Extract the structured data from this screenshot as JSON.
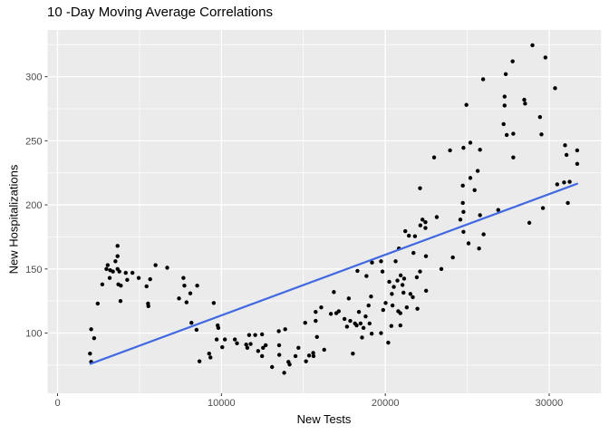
{
  "window": {
    "title": "10 -Day Moving Average Correlations"
  },
  "chart_data": {
    "type": "scatter",
    "title": "10 -Day Moving Average Correlations",
    "xlabel": "New Tests",
    "ylabel": "New Hospitalizations",
    "legend": "none",
    "grid": true,
    "x_ticks": [
      0,
      10000,
      20000,
      30000
    ],
    "x_minor_gridlines": [
      5000,
      15000,
      25000
    ],
    "y_ticks": [
      100,
      150,
      200,
      250,
      300
    ],
    "y_minor_gridlines": [
      75,
      125,
      175,
      225,
      275,
      325
    ],
    "xlim": [
      -610,
      33170
    ],
    "ylim": [
      53,
      336.5
    ],
    "colors": {
      "panel_bg": "#EBEBEB",
      "grid": "#FFFFFF",
      "points": "#000000",
      "trend": "#4169E1",
      "axis_text": "#4D4D4D",
      "tick_marks": "#333333"
    },
    "trend_line": {
      "x": [
        2010,
        31710
      ],
      "y": [
        76,
        216.5
      ]
    },
    "points": [
      [
        1980,
        84
      ],
      [
        2050,
        77.5
      ],
      [
        2050,
        103
      ],
      [
        2230,
        96
      ],
      [
        2450,
        123
      ],
      [
        2730,
        138
      ],
      [
        2980,
        150
      ],
      [
        3060,
        153
      ],
      [
        3180,
        143
      ],
      [
        3210,
        149
      ],
      [
        3380,
        148
      ],
      [
        3530,
        156
      ],
      [
        3660,
        150
      ],
      [
        3660,
        160
      ],
      [
        3660,
        168
      ],
      [
        3710,
        138
      ],
      [
        3770,
        148
      ],
      [
        3840,
        125
      ],
      [
        3860,
        137
      ],
      [
        4160,
        147
      ],
      [
        4250,
        141.5
      ],
      [
        4570,
        147
      ],
      [
        4950,
        143
      ],
      [
        5430,
        136.5
      ],
      [
        5520,
        123
      ],
      [
        5540,
        121
      ],
      [
        5650,
        142
      ],
      [
        5980,
        153
      ],
      [
        6690,
        151
      ],
      [
        7410,
        127
      ],
      [
        7680,
        143
      ],
      [
        7740,
        137
      ],
      [
        7870,
        124
      ],
      [
        8100,
        131
      ],
      [
        8170,
        108
      ],
      [
        8480,
        102.5
      ],
      [
        8520,
        137
      ],
      [
        8660,
        78
      ],
      [
        9250,
        84
      ],
      [
        9330,
        81
      ],
      [
        9530,
        123.5
      ],
      [
        9710,
        95
      ],
      [
        9770,
        106
      ],
      [
        9810,
        104
      ],
      [
        10050,
        89
      ],
      [
        10210,
        95
      ],
      [
        10820,
        95
      ],
      [
        10950,
        92
      ],
      [
        11510,
        91
      ],
      [
        11580,
        88.5
      ],
      [
        11690,
        98.5
      ],
      [
        11780,
        91.5
      ],
      [
        12060,
        98.5
      ],
      [
        12240,
        86
      ],
      [
        12480,
        82
      ],
      [
        12480,
        99
      ],
      [
        12540,
        88.5
      ],
      [
        12700,
        90.5
      ],
      [
        13090,
        73.5
      ],
      [
        13500,
        101.5
      ],
      [
        13520,
        90.5
      ],
      [
        13530,
        83
      ],
      [
        13830,
        69
      ],
      [
        13890,
        103
      ],
      [
        14090,
        77.5
      ],
      [
        14160,
        75.5
      ],
      [
        14520,
        82
      ],
      [
        14700,
        88.5
      ],
      [
        15110,
        108
      ],
      [
        15160,
        78
      ],
      [
        15350,
        82.5
      ],
      [
        15600,
        84.5
      ],
      [
        15620,
        82
      ],
      [
        15750,
        109.5
      ],
      [
        15750,
        116.5
      ],
      [
        15830,
        97
      ],
      [
        16090,
        120
      ],
      [
        16270,
        87
      ],
      [
        16680,
        115
      ],
      [
        16860,
        132
      ],
      [
        17010,
        115.5
      ],
      [
        17160,
        117
      ],
      [
        17510,
        111
      ],
      [
        17660,
        105
      ],
      [
        17770,
        127
      ],
      [
        17860,
        109.5
      ],
      [
        18020,
        84
      ],
      [
        18150,
        107.5
      ],
      [
        18250,
        106
      ],
      [
        18300,
        148.5
      ],
      [
        18390,
        116.5
      ],
      [
        18490,
        107.5
      ],
      [
        18580,
        96.5
      ],
      [
        18670,
        104
      ],
      [
        18800,
        113
      ],
      [
        18850,
        144.5
      ],
      [
        18980,
        121.5
      ],
      [
        19040,
        107.5
      ],
      [
        19130,
        128.5
      ],
      [
        19170,
        99.5
      ],
      [
        19190,
        155
      ],
      [
        19740,
        100
      ],
      [
        19740,
        156
      ],
      [
        19830,
        148
      ],
      [
        19870,
        118
      ],
      [
        20020,
        123.5
      ],
      [
        20180,
        92.5
      ],
      [
        20240,
        140
      ],
      [
        20370,
        105.5
      ],
      [
        20400,
        130.5
      ],
      [
        20440,
        121.5
      ],
      [
        20520,
        136
      ],
      [
        20630,
        156
      ],
      [
        20740,
        141
      ],
      [
        20790,
        117
      ],
      [
        20830,
        166
      ],
      [
        20920,
        106
      ],
      [
        20920,
        115.5
      ],
      [
        20940,
        145
      ],
      [
        21050,
        137.5
      ],
      [
        21110,
        131.5
      ],
      [
        21150,
        142.5
      ],
      [
        21220,
        179.5
      ],
      [
        21310,
        120
      ],
      [
        21440,
        176
      ],
      [
        21530,
        130.5
      ],
      [
        21680,
        128
      ],
      [
        21720,
        162.5
      ],
      [
        21810,
        175.5
      ],
      [
        21920,
        143.5
      ],
      [
        21960,
        119
      ],
      [
        22120,
        148
      ],
      [
        22120,
        213
      ],
      [
        22140,
        184
      ],
      [
        22270,
        188.5
      ],
      [
        22450,
        182
      ],
      [
        22450,
        186.5
      ],
      [
        22480,
        160
      ],
      [
        22490,
        133
      ],
      [
        22980,
        237
      ],
      [
        23140,
        190.5
      ],
      [
        23420,
        150
      ],
      [
        23950,
        242.5
      ],
      [
        24120,
        159
      ],
      [
        24580,
        188.5
      ],
      [
        24730,
        201.5
      ],
      [
        24730,
        215
      ],
      [
        24770,
        179
      ],
      [
        24770,
        194.5
      ],
      [
        24770,
        244.5
      ],
      [
        24950,
        278
      ],
      [
        25080,
        170
      ],
      [
        25190,
        221
      ],
      [
        25190,
        248.5
      ],
      [
        25450,
        211.5
      ],
      [
        25640,
        226.5
      ],
      [
        25720,
        166
      ],
      [
        25780,
        192
      ],
      [
        25780,
        243
      ],
      [
        25970,
        298
      ],
      [
        26000,
        177
      ],
      [
        26890,
        196
      ],
      [
        27220,
        263
      ],
      [
        27280,
        277.5
      ],
      [
        27280,
        284.5
      ],
      [
        27350,
        302
      ],
      [
        27410,
        254.5
      ],
      [
        27770,
        312
      ],
      [
        27810,
        237
      ],
      [
        27810,
        255.5
      ],
      [
        28480,
        282
      ],
      [
        28530,
        279
      ],
      [
        28790,
        186
      ],
      [
        28980,
        324.5
      ],
      [
        29440,
        268.5
      ],
      [
        29530,
        255
      ],
      [
        29620,
        197.5
      ],
      [
        29770,
        315
      ],
      [
        30360,
        291
      ],
      [
        30490,
        216
      ],
      [
        30910,
        217.5
      ],
      [
        30970,
        246.5
      ],
      [
        31060,
        239
      ],
      [
        31140,
        201.5
      ],
      [
        31250,
        218
      ],
      [
        31710,
        232
      ],
      [
        31710,
        242.5
      ]
    ]
  }
}
